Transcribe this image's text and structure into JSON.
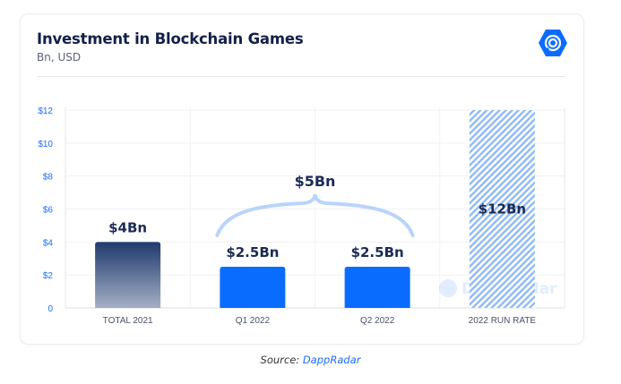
{
  "header": {
    "title": "Investment in Blockchain Games",
    "subtitle": "Bn, USD",
    "logo_icon": "dappradar-logo-icon"
  },
  "chart_data": {
    "type": "bar",
    "title": "Investment in Blockchain Games",
    "subtitle": "Bn, USD",
    "xlabel": "",
    "ylabel": "",
    "categories": [
      "TOTAL 2021",
      "Q1 2022",
      "Q2 2022",
      "2022 RUN RATE"
    ],
    "values": [
      4,
      2.5,
      2.5,
      12
    ],
    "data_labels": [
      "$4Bn",
      "$2.5Bn",
      "$2.5Bn",
      "$12Bn"
    ],
    "bar_styles": [
      "gradient-navy",
      "solid-blue",
      "solid-blue",
      "hatched-light-blue"
    ],
    "ylim": [
      0,
      12
    ],
    "yticks": [
      0,
      2,
      4,
      6,
      8,
      10,
      12
    ],
    "ytick_labels": [
      "0",
      "$2",
      "$4",
      "$6",
      "$8",
      "$10",
      "$12"
    ],
    "grid": true,
    "annotations": [
      {
        "type": "brace",
        "spans": [
          "Q1 2022",
          "Q2 2022"
        ],
        "label": "$5Bn"
      }
    ],
    "watermark": "DappRadar"
  },
  "colors": {
    "title": "#13204a",
    "axis_labels": "#1e6bff",
    "bar_navy_top": "#1f3a6e",
    "bar_navy_bottom": "#a4afc4",
    "bar_blue": "#0a6cff",
    "hatch": "#8fbaf5",
    "brace": "#b9d4fb",
    "data_label": "#1b2b55"
  },
  "footer": {
    "source_prefix": "Source:",
    "source_name": "DappRadar"
  }
}
